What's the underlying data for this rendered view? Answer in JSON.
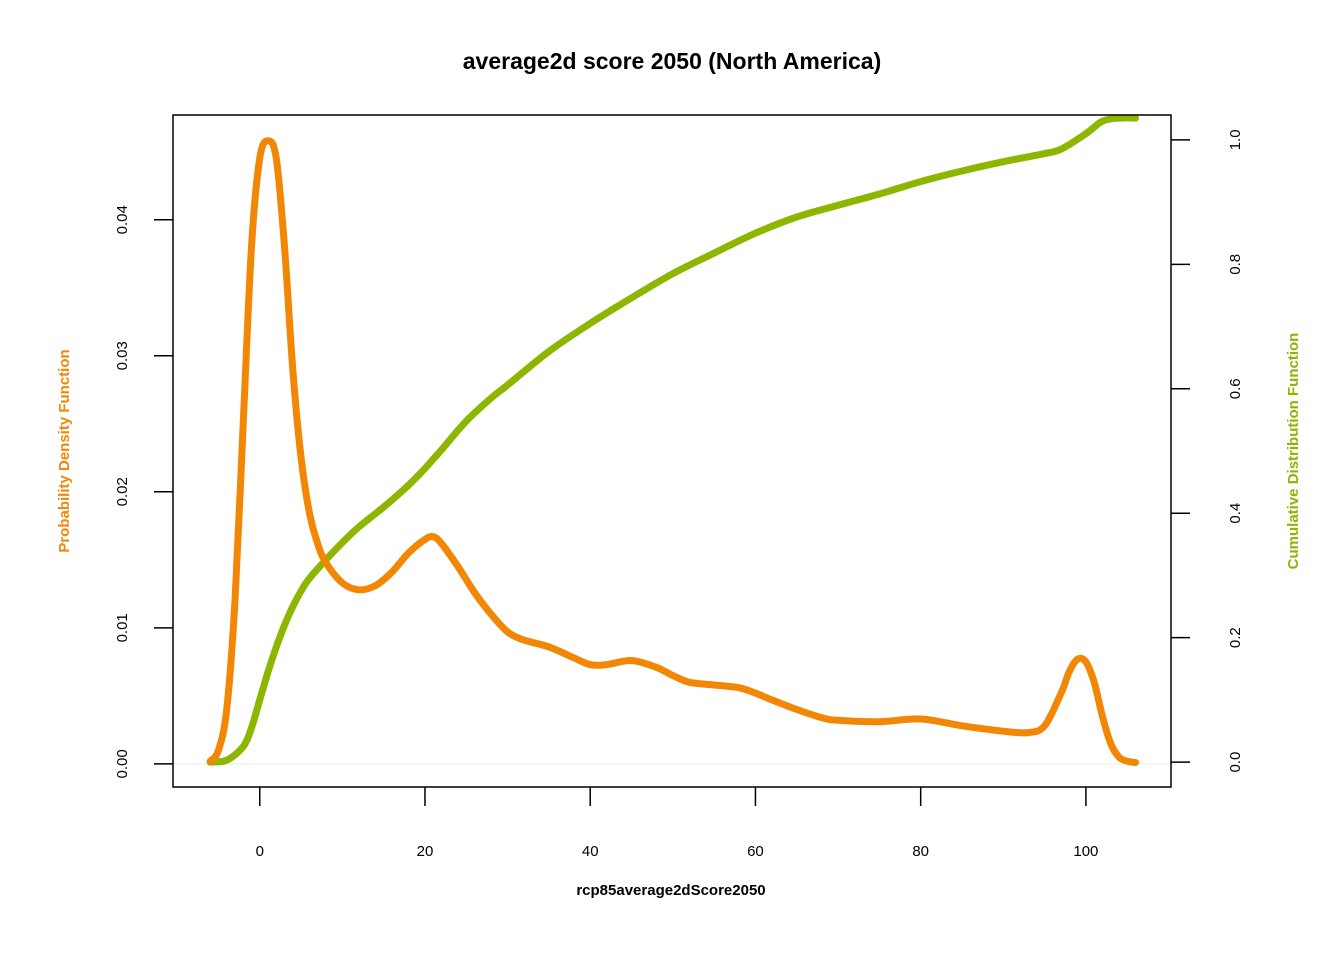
{
  "chart_data": {
    "type": "line",
    "title": "average2d score 2050 (North America)",
    "xlabel": "rcp85average2dScore2050",
    "ylabel_left": "Probability Density Function",
    "ylabel_right": "Cumulative Distribution Function",
    "xlim": [
      -10.5,
      110.3
    ],
    "ylim_left": [
      -0.0017,
      0.0477
    ],
    "ylim_right": [
      -0.04,
      1.04
    ],
    "x_ticks": [
      0,
      20,
      40,
      60,
      80,
      100
    ],
    "x_tick_labels": [
      "0",
      "20",
      "40",
      "60",
      "80",
      "100"
    ],
    "y_left_ticks": [
      0,
      0.01,
      0.02,
      0.03,
      0.04
    ],
    "y_left_tick_labels": [
      "0.00",
      "0.01",
      "0.02",
      "0.03",
      "0.04"
    ],
    "y_right_ticks": [
      0,
      0.2,
      0.4,
      0.6,
      0.8,
      1.0
    ],
    "y_right_tick_labels": [
      "0.0",
      "0.2",
      "0.4",
      "0.6",
      "0.8",
      "1.0"
    ],
    "grid": false,
    "series": [
      {
        "axis": "left",
        "color": "#F28705",
        "x": [
          -6,
          -5,
          -4,
          -3,
          -2,
          -1,
          0,
          1,
          2,
          3,
          4,
          5,
          6,
          7,
          8,
          10,
          12,
          14,
          16,
          18,
          20,
          21,
          22,
          24,
          26,
          28,
          30,
          32,
          35,
          38,
          40,
          42,
          45,
          48,
          50,
          52,
          55,
          58,
          60,
          62,
          65,
          68,
          70,
          75,
          80,
          85,
          90,
          93,
          95,
          97,
          98,
          99,
          100,
          101,
          102,
          103,
          104,
          105,
          106
        ],
        "y": [
          0.0002,
          0.001,
          0.004,
          0.012,
          0.025,
          0.038,
          0.0445,
          0.0458,
          0.0445,
          0.038,
          0.029,
          0.0225,
          0.0185,
          0.0162,
          0.0148,
          0.0133,
          0.0128,
          0.0131,
          0.0141,
          0.0155,
          0.0165,
          0.0167,
          0.0162,
          0.0145,
          0.0126,
          0.011,
          0.0097,
          0.0091,
          0.0086,
          0.0078,
          0.0073,
          0.0073,
          0.0076,
          0.0071,
          0.0065,
          0.006,
          0.0058,
          0.0056,
          0.0052,
          0.0047,
          0.004,
          0.0034,
          0.0032,
          0.0031,
          0.0033,
          0.0028,
          0.0024,
          0.0023,
          0.0028,
          0.0052,
          0.0068,
          0.0077,
          0.0075,
          0.006,
          0.0035,
          0.0015,
          0.0005,
          0.0002,
          0.0001
        ]
      },
      {
        "axis": "right",
        "color": "#8DB600",
        "x": [
          -6,
          -4,
          -2,
          -1,
          0,
          1,
          2,
          3,
          4,
          5,
          6,
          8,
          10,
          12,
          15,
          18,
          20,
          22,
          25,
          28,
          30,
          35,
          40,
          45,
          50,
          55,
          60,
          65,
          70,
          75,
          80,
          85,
          90,
          95,
          97,
          100,
          102,
          104,
          106
        ],
        "y": [
          0.0,
          0.003,
          0.025,
          0.055,
          0.1,
          0.145,
          0.185,
          0.22,
          0.25,
          0.275,
          0.295,
          0.325,
          0.353,
          0.378,
          0.41,
          0.445,
          0.472,
          0.502,
          0.548,
          0.585,
          0.606,
          0.66,
          0.705,
          0.746,
          0.785,
          0.818,
          0.85,
          0.876,
          0.895,
          0.913,
          0.933,
          0.95,
          0.965,
          0.978,
          0.985,
          1.01,
          1.03,
          1.035,
          1.035
        ]
      }
    ]
  }
}
